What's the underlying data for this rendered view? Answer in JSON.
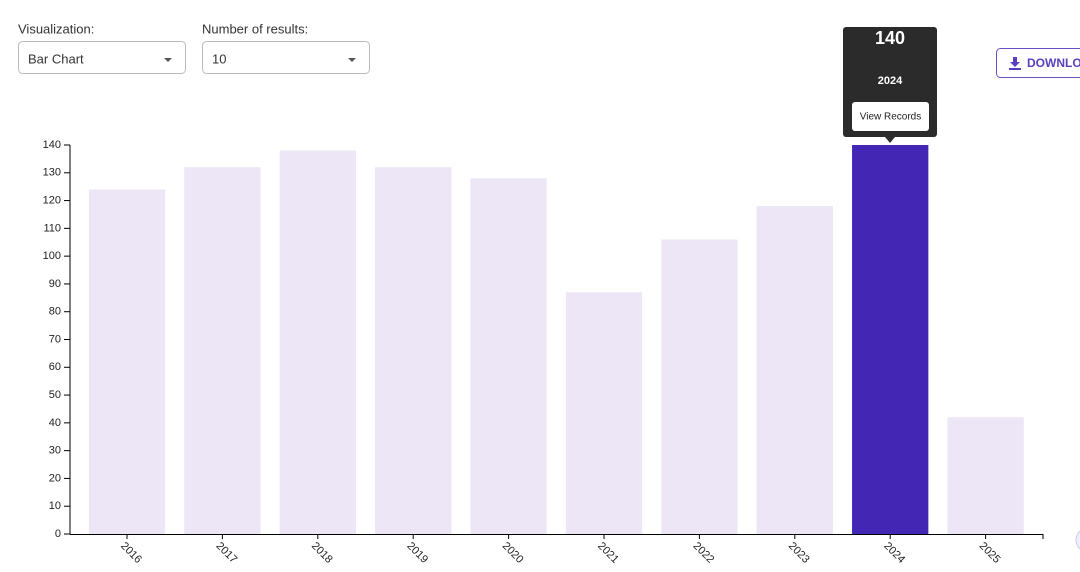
{
  "controls": {
    "visualization": {
      "label": "Visualization:",
      "value": "Bar Chart"
    },
    "results": {
      "label": "Number of results:",
      "value": "10"
    },
    "download": "DOWNLOAD",
    "tooltip_button": "View Records"
  },
  "chart_data": {
    "type": "bar",
    "categories": [
      "2016",
      "2017",
      "2018",
      "2019",
      "2020",
      "2021",
      "2022",
      "2023",
      "2024",
      "2025"
    ],
    "values": [
      124,
      132,
      138,
      132,
      128,
      87,
      106,
      118,
      140,
      42
    ],
    "colors": [
      "#ece6f6",
      "#ece6f6",
      "#ece6f6",
      "#ece6f6",
      "#ece6f6",
      "#ece6f6",
      "#ece6f6",
      "#ece6f6",
      "#4326b3",
      "#ece6f6"
    ],
    "ylim": [
      0,
      140
    ],
    "yticks": [
      0,
      10,
      20,
      30,
      40,
      50,
      60,
      70,
      80,
      90,
      100,
      110,
      120,
      130,
      140
    ]
  }
}
